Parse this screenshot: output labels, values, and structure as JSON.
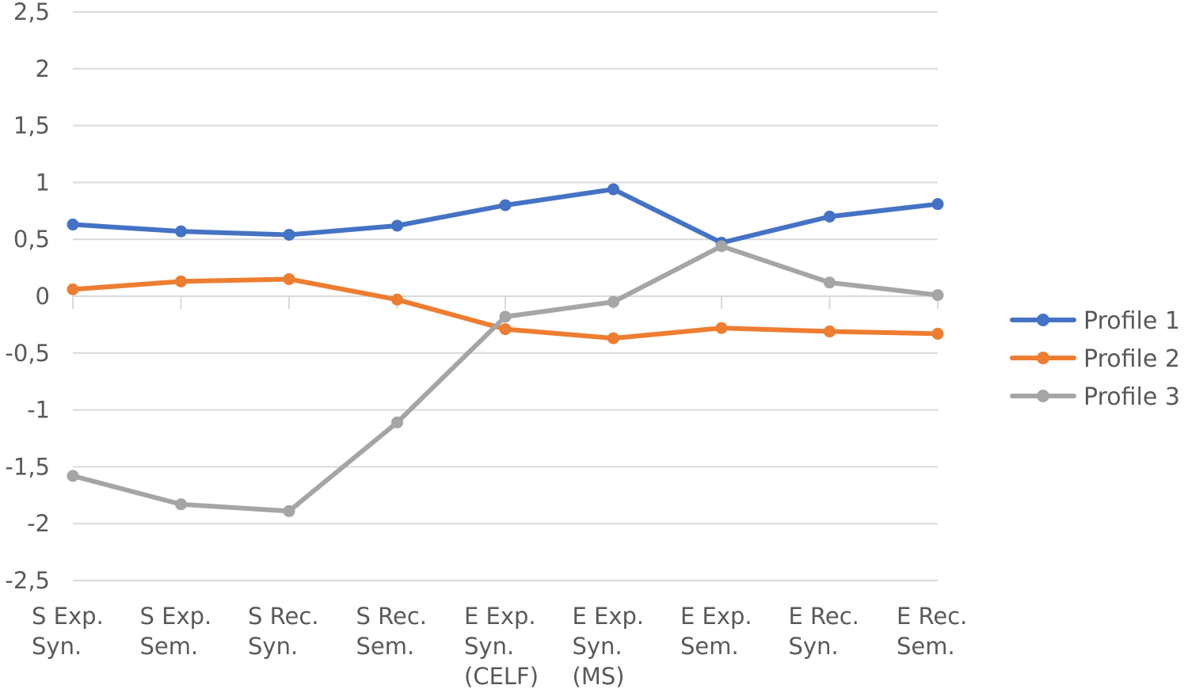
{
  "chart_data": {
    "type": "line",
    "categories": [
      [
        "S Exp.",
        "Syn."
      ],
      [
        "S Exp.",
        "Sem."
      ],
      [
        "S Rec.",
        "Syn."
      ],
      [
        "S Rec.",
        "Sem."
      ],
      [
        "E Exp.",
        "Syn.",
        "(CELF)"
      ],
      [
        "E Exp.",
        "Syn.",
        "(MS)"
      ],
      [
        "E Exp.",
        "Sem."
      ],
      [
        "E Rec.",
        "Syn."
      ],
      [
        "E Rec.",
        "Sem."
      ]
    ],
    "series": [
      {
        "name": "Profile 1",
        "color": "#4472C4",
        "values": [
          0.63,
          0.57,
          0.54,
          0.62,
          0.8,
          0.94,
          0.47,
          0.7,
          0.81
        ]
      },
      {
        "name": "Profile 2",
        "color": "#ED7D31",
        "values": [
          0.06,
          0.13,
          0.15,
          -0.03,
          -0.29,
          -0.37,
          -0.28,
          -0.31,
          -0.33
        ]
      },
      {
        "name": "Profile 3",
        "color": "#A5A5A5",
        "values": [
          -1.58,
          -1.83,
          -1.89,
          -1.11,
          -0.18,
          -0.05,
          0.44,
          0.12,
          0.01
        ]
      }
    ],
    "ylim": [
      -2.5,
      2.5
    ],
    "yticks": [
      "2,5",
      "2",
      "1,5",
      "1",
      "0,5",
      "0",
      "-0,5",
      "-1",
      "-1,5",
      "-2",
      "-2,5"
    ],
    "grid": true,
    "legend": "right",
    "title": "",
    "xlabel": "",
    "ylabel": ""
  }
}
